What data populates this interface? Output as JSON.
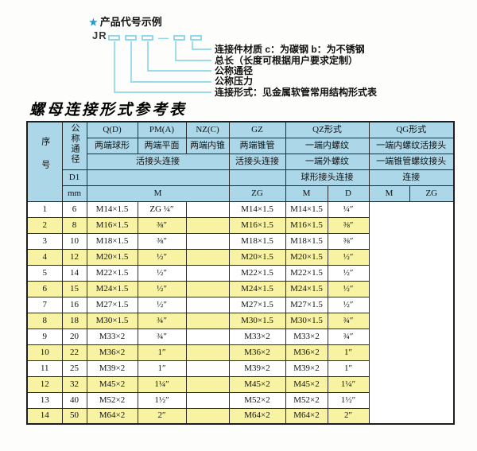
{
  "diagram": {
    "star": "★",
    "title": "产品代号示例",
    "prefix": "JR",
    "dash": "—",
    "labels": [
      "连接件材质  c：为碳钢  b：为不锈钢",
      "总长（长度可根据用户要求定制）",
      "公称通径",
      "公称压力",
      "连接形式：见金属软管常用结构形式表"
    ],
    "line_color": "#8dd6ec",
    "star_color": "#1d9bd5"
  },
  "table": {
    "title": "螺母连接形式参考表",
    "colors": {
      "header_bg": "#abd7e9",
      "row_alt_bg": "#f8f3a3",
      "row_bg": "#ffffff",
      "border": "#2b2b2b"
    },
    "header": {
      "seq": "序号",
      "dn": "公称通径",
      "d1": "D1",
      "mm": "mm",
      "col_q": "Q(D)",
      "col_pm": "PM(A)",
      "col_nz": "NZ(C)",
      "col_gz": "GZ",
      "col_qz": "QZ形式",
      "col_qg": "QG形式",
      "q_desc": "两端球形",
      "pm_desc": "两端平面",
      "nz_desc": "两端内锥",
      "gz_desc": "两端锥管",
      "qz_desc1": "一端内螺纹",
      "qg_desc1": "一端内螺纹活接头",
      "left_conn": "活接头连接",
      "gz_conn": "活接头连接",
      "qz_desc2": "一端外螺纹",
      "qg_desc2": "一端锥管螺纹接头",
      "qz_conn": "球形接头连接",
      "qg_conn": "连接",
      "m_label": "M",
      "zg_label": "ZG",
      "qz_m": "M",
      "qz_d": "D",
      "qg_m": "M",
      "qg_zg": "ZG"
    },
    "row_keys": [
      "seq",
      "dn",
      "m",
      "zg",
      "qz_m",
      "qz_d",
      "qg_m",
      "qg_zg"
    ],
    "rows": [
      {
        "seq": "1",
        "dn": "6",
        "m": "M14×1.5",
        "zg": "ZG ¼″",
        "qz_m": "",
        "qz_d": "M14×1.5",
        "qg_m": "M14×1.5",
        "qg_zg": "¼″"
      },
      {
        "seq": "2",
        "dn": "8",
        "m": "M16×1.5",
        "zg": "⅜″",
        "qz_m": "",
        "qz_d": "M16×1.5",
        "qg_m": "M16×1.5",
        "qg_zg": "⅜″"
      },
      {
        "seq": "3",
        "dn": "10",
        "m": "M18×1.5",
        "zg": "⅜″",
        "qz_m": "",
        "qz_d": "M18×1.5",
        "qg_m": "M18×1.5",
        "qg_zg": "⅜″"
      },
      {
        "seq": "4",
        "dn": "12",
        "m": "M20×1.5",
        "zg": "½″",
        "qz_m": "",
        "qz_d": "M20×1.5",
        "qg_m": "M20×1.5",
        "qg_zg": "½″"
      },
      {
        "seq": "5",
        "dn": "14",
        "m": "M22×1.5",
        "zg": "½″",
        "qz_m": "",
        "qz_d": "M22×1.5",
        "qg_m": "M22×1.5",
        "qg_zg": "½″"
      },
      {
        "seq": "6",
        "dn": "15",
        "m": "M24×1.5",
        "zg": "½″",
        "qz_m": "",
        "qz_d": "M24×1.5",
        "qg_m": "M24×1.5",
        "qg_zg": "½″"
      },
      {
        "seq": "7",
        "dn": "16",
        "m": "M27×1.5",
        "zg": "½″",
        "qz_m": "",
        "qz_d": "M27×1.5",
        "qg_m": "M27×1.5",
        "qg_zg": "½″"
      },
      {
        "seq": "8",
        "dn": "18",
        "m": "M30×1.5",
        "zg": "¾″",
        "qz_m": "",
        "qz_d": "M30×1.5",
        "qg_m": "M30×1.5",
        "qg_zg": "¾″"
      },
      {
        "seq": "9",
        "dn": "20",
        "m": "M33×2",
        "zg": "¾″",
        "qz_m": "",
        "qz_d": "M33×2",
        "qg_m": "M33×2",
        "qg_zg": "¾″"
      },
      {
        "seq": "10",
        "dn": "22",
        "m": "M36×2",
        "zg": "1″",
        "qz_m": "",
        "qz_d": "M36×2",
        "qg_m": "M36×2",
        "qg_zg": "1″"
      },
      {
        "seq": "11",
        "dn": "25",
        "m": "M39×2",
        "zg": "1″",
        "qz_m": "",
        "qz_d": "M39×2",
        "qg_m": "M39×2",
        "qg_zg": "1″"
      },
      {
        "seq": "12",
        "dn": "32",
        "m": "M45×2",
        "zg": "1¼″",
        "qz_m": "",
        "qz_d": "M45×2",
        "qg_m": "M45×2",
        "qg_zg": "1¼″"
      },
      {
        "seq": "13",
        "dn": "40",
        "m": "M52×2",
        "zg": "1½″",
        "qz_m": "",
        "qz_d": "M52×2",
        "qg_m": "M52×2",
        "qg_zg": "1½″"
      },
      {
        "seq": "14",
        "dn": "50",
        "m": "M64×2",
        "zg": "2″",
        "qz_m": "",
        "qz_d": "M64×2",
        "qg_m": "M64×2",
        "qg_zg": "2″"
      }
    ]
  }
}
